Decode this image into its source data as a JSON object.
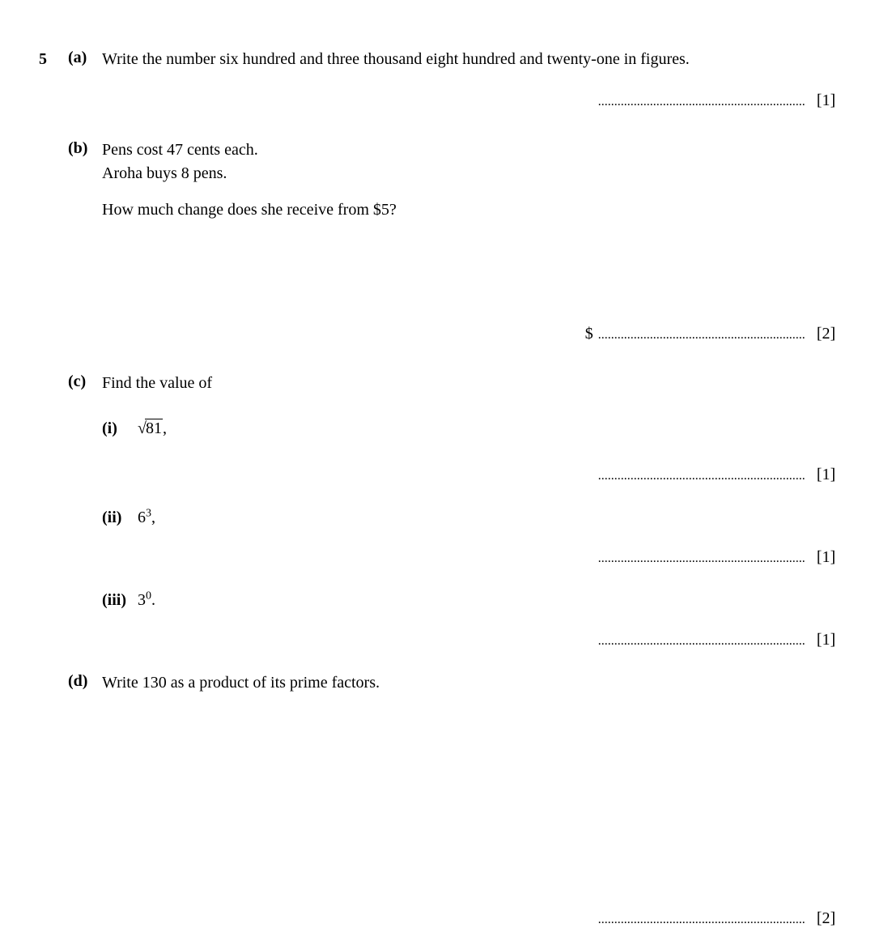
{
  "question_number": "5",
  "parts": {
    "a": {
      "label": "(a)",
      "text": "Write the number six hundred and three thousand eight hundred and twenty-one in figures.",
      "marks": "[1]"
    },
    "b": {
      "label": "(b)",
      "line1": "Pens cost 47 cents each.",
      "line2": "Aroha buys 8 pens.",
      "question": "How much change does she receive from $5?",
      "answer_prefix": "$",
      "marks": "[2]"
    },
    "c": {
      "label": "(c)",
      "text": "Find the value of",
      "sub_i": {
        "label": "(i)",
        "sqrt_sym": "√",
        "sqrt_val": "81",
        "suffix": ",",
        "marks": "[1]"
      },
      "sub_ii": {
        "label": "(ii)",
        "base": "6",
        "exp": "3",
        "suffix": ",",
        "marks": "[1]"
      },
      "sub_iii": {
        "label": "(iii)",
        "base": "3",
        "exp": "0",
        "suffix": ".",
        "marks": "[1]"
      }
    },
    "d": {
      "label": "(d)",
      "text": "Write 130 as a product of its prime factors.",
      "marks": "[2]"
    }
  },
  "dots": "................................................................",
  "colors": {
    "text": "#000000",
    "background": "#ffffff"
  },
  "typography": {
    "font_family": "Times New Roman",
    "body_fontsize": 20,
    "qnum_fontsize": 20
  }
}
